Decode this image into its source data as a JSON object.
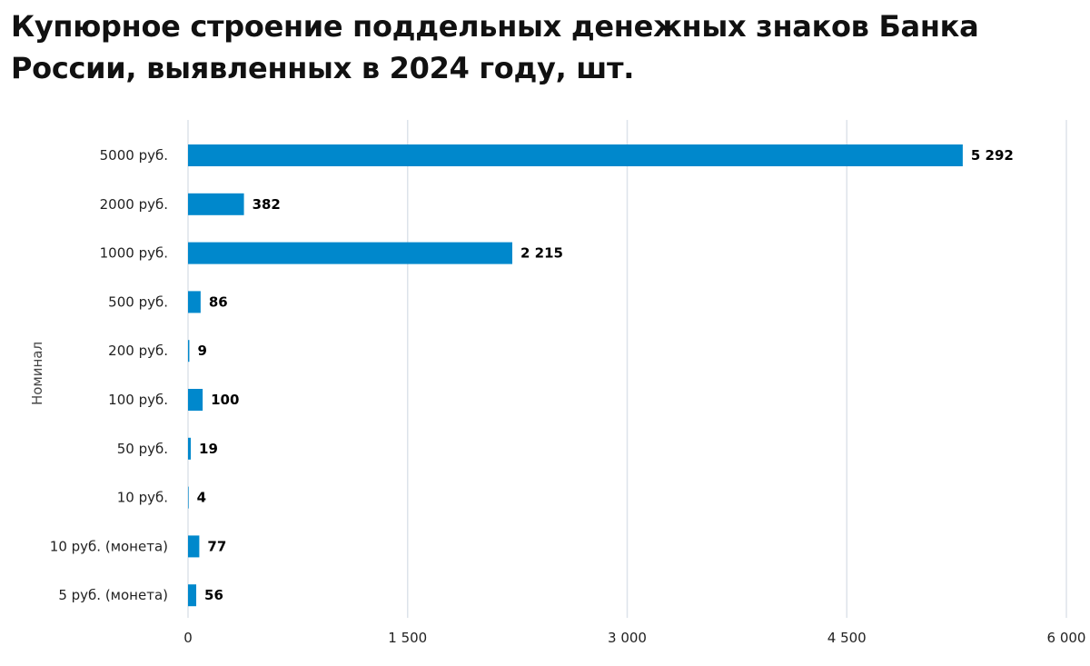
{
  "chart_data": {
    "type": "bar",
    "orientation": "horizontal",
    "title": "Купюрное строение поддельных денежных знаков Банка России, выявленных в 2024 году, шт.",
    "categories": [
      "5000 руб.",
      "2000 руб.",
      "1000 руб.",
      "500 руб.",
      "200 руб.",
      "100 руб.",
      "50 руб.",
      "10 руб.",
      "10 руб. (монета)",
      "5 руб. (монета)"
    ],
    "values": [
      5292,
      382,
      2215,
      86,
      9,
      100,
      19,
      4,
      77,
      56
    ],
    "value_labels": [
      "5 292",
      "382",
      "2 215",
      "86",
      "9",
      "100",
      "19",
      "4",
      "77",
      "56"
    ],
    "ylabel": "Номинал",
    "xlabel": "",
    "xlim": [
      0,
      6000
    ],
    "xticks": [
      0,
      1500,
      3000,
      4500,
      6000
    ],
    "xtick_labels": [
      "0",
      "1 500",
      "3 000",
      "4 500",
      "6 000"
    ],
    "grid": true,
    "bar_color": "#0088cc"
  }
}
